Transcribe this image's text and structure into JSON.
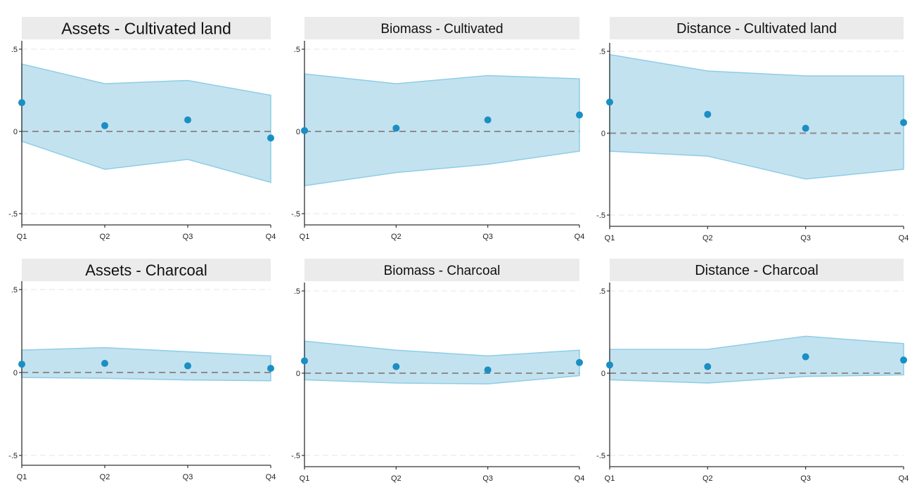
{
  "chart_data": [
    {
      "type": "scatter",
      "title": "Assets - Cultivated land",
      "categories": [
        "Q1",
        "Q2",
        "Q3",
        "Q4"
      ],
      "estimates": [
        0.175,
        0.035,
        0.07,
        -0.04
      ],
      "ci_upper": [
        0.41,
        0.29,
        0.31,
        0.22
      ],
      "ci_lower": [
        -0.06,
        -0.23,
        -0.17,
        -0.31
      ],
      "yticks": [
        0.5,
        0,
        -0.5
      ],
      "ytick_labels": [
        ".5",
        "0",
        "-.5"
      ],
      "ylim": [
        -0.57,
        0.55
      ],
      "reference_line": 0,
      "grid": true
    },
    {
      "type": "scatter",
      "title": "Biomass - Cultivated",
      "categories": [
        "Q1",
        "Q2",
        "Q3",
        "Q4"
      ],
      "estimates": [
        0.005,
        0.02,
        0.07,
        0.1
      ],
      "ci_upper": [
        0.35,
        0.29,
        0.34,
        0.32
      ],
      "ci_lower": [
        -0.33,
        -0.25,
        -0.2,
        -0.12
      ],
      "yticks": [
        0.5,
        0,
        -0.5
      ],
      "ytick_labels": [
        ".5",
        "0",
        "-.5"
      ],
      "ylim": [
        -0.57,
        0.55
      ],
      "reference_line": 0,
      "grid": true
    },
    {
      "type": "scatter",
      "title": "Distance - Cultivated land",
      "categories": [
        "Q1",
        "Q2",
        "Q3",
        "Q4"
      ],
      "estimates": [
        0.19,
        0.115,
        0.03,
        0.065
      ],
      "ci_upper": [
        0.48,
        0.38,
        0.35,
        0.35
      ],
      "ci_lower": [
        -0.11,
        -0.14,
        -0.28,
        -0.22
      ],
      "yticks": [
        0.5,
        0,
        -0.5
      ],
      "ytick_labels": [
        ".5",
        "0",
        "-.5"
      ],
      "ylim": [
        -0.57,
        0.55
      ],
      "reference_line": 0,
      "grid": true
    },
    {
      "type": "scatter",
      "title": "Assets - Charcoal",
      "categories": [
        "Q1",
        "Q2",
        "Q3",
        "Q4"
      ],
      "estimates": [
        0.05,
        0.055,
        0.04,
        0.025
      ],
      "ci_upper": [
        0.135,
        0.15,
        0.125,
        0.1
      ],
      "ci_lower": [
        -0.03,
        -0.035,
        -0.045,
        -0.05
      ],
      "yticks": [
        0.5,
        0,
        -0.5
      ],
      "ytick_labels": [
        ".5",
        "0",
        "-.5"
      ],
      "ylim": [
        -0.57,
        0.55
      ],
      "reference_line": 0,
      "grid": true
    },
    {
      "type": "scatter",
      "title": "Biomass - Charcoal",
      "categories": [
        "Q1",
        "Q2",
        "Q3",
        "Q4"
      ],
      "estimates": [
        0.075,
        0.04,
        0.02,
        0.065
      ],
      "ci_upper": [
        0.195,
        0.14,
        0.105,
        0.14
      ],
      "ci_lower": [
        -0.04,
        -0.06,
        -0.065,
        -0.015
      ],
      "yticks": [
        0.5,
        0,
        -0.5
      ],
      "ytick_labels": [
        ".5",
        "0",
        "-.5"
      ],
      "ylim": [
        -0.57,
        0.55
      ],
      "reference_line": 0,
      "grid": true
    },
    {
      "type": "scatter",
      "title": "Distance - Charcoal",
      "categories": [
        "Q1",
        "Q2",
        "Q3",
        "Q4"
      ],
      "estimates": [
        0.05,
        0.04,
        0.1,
        0.08
      ],
      "ci_upper": [
        0.145,
        0.145,
        0.225,
        0.18
      ],
      "ci_lower": [
        -0.04,
        -0.06,
        -0.02,
        -0.01
      ],
      "yticks": [
        0.5,
        0,
        -0.5
      ],
      "ytick_labels": [
        ".5",
        "0",
        "-.5"
      ],
      "ylim": [
        -0.57,
        0.55
      ],
      "reference_line": 0,
      "grid": true
    }
  ],
  "colors": {
    "ci_fill": "#c3e2ef",
    "ci_edge": "#8ecde6",
    "point": "#1a8fc4",
    "reference_line": "#8c8c8c",
    "grid": "#e9e9e9",
    "axis": "#333333",
    "title_background": "#ebebeb"
  }
}
